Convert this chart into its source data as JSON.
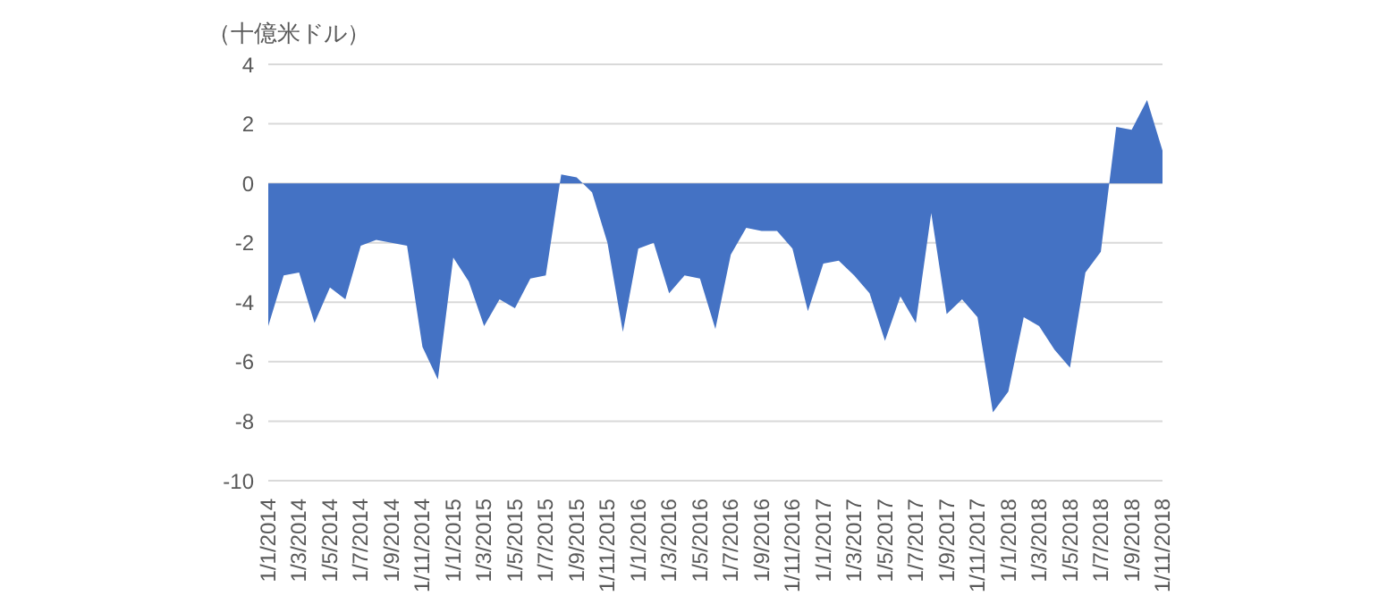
{
  "chart_data": {
    "type": "area",
    "ylabel": "（十億米ドル）",
    "categories": [
      "1/1/2014",
      null,
      "1/3/2014",
      null,
      "1/5/2014",
      null,
      "1/7/2014",
      null,
      "1/9/2014",
      null,
      "1/11/2014",
      null,
      "1/1/2015",
      null,
      "1/3/2015",
      null,
      "1/5/2015",
      null,
      "1/7/2015",
      null,
      "1/9/2015",
      null,
      "1/11/2015",
      null,
      "1/1/2016",
      null,
      "1/3/2016",
      null,
      "1/5/2016",
      null,
      "1/7/2016",
      null,
      "1/9/2016",
      null,
      "1/11/2016",
      null,
      "1/1/2017",
      null,
      "1/3/2017",
      null,
      "1/5/2017",
      null,
      "1/7/2017",
      null,
      "1/9/2017",
      null,
      "1/11/2017",
      null,
      "1/1/2018",
      null,
      "1/3/2018",
      null,
      "1/5/2018",
      null,
      "1/7/2018",
      null,
      "1/9/2018",
      null,
      "1/11/2018"
    ],
    "series": [
      {
        "color": "#4472c4",
        "values": [
          -4.8,
          -3.1,
          -3.0,
          -4.7,
          -3.5,
          -3.9,
          -2.1,
          -1.9,
          -2.0,
          -2.1,
          -5.5,
          -6.6,
          -2.5,
          -3.3,
          -4.8,
          -3.9,
          -4.2,
          -3.2,
          -3.1,
          0.3,
          0.2,
          -0.3,
          -2.0,
          -5.0,
          -2.2,
          -2.0,
          -3.7,
          -3.1,
          -3.2,
          -4.9,
          -2.4,
          -1.5,
          -1.6,
          -1.6,
          -2.2,
          -4.3,
          -2.7,
          -2.6,
          -3.1,
          -3.7,
          -5.3,
          -3.8,
          -4.7,
          -1.0,
          -4.4,
          -3.9,
          -4.5,
          -7.7,
          -7.0,
          -4.5,
          -4.8,
          -5.6,
          -6.2,
          -3.0,
          -2.3,
          1.9,
          1.8,
          2.8,
          1.1
        ]
      }
    ],
    "ylim": [
      -10,
      4
    ],
    "yticks": [
      -10,
      -8,
      -6,
      -4,
      -2,
      0,
      2,
      4
    ],
    "grid": "y",
    "legend": false
  }
}
